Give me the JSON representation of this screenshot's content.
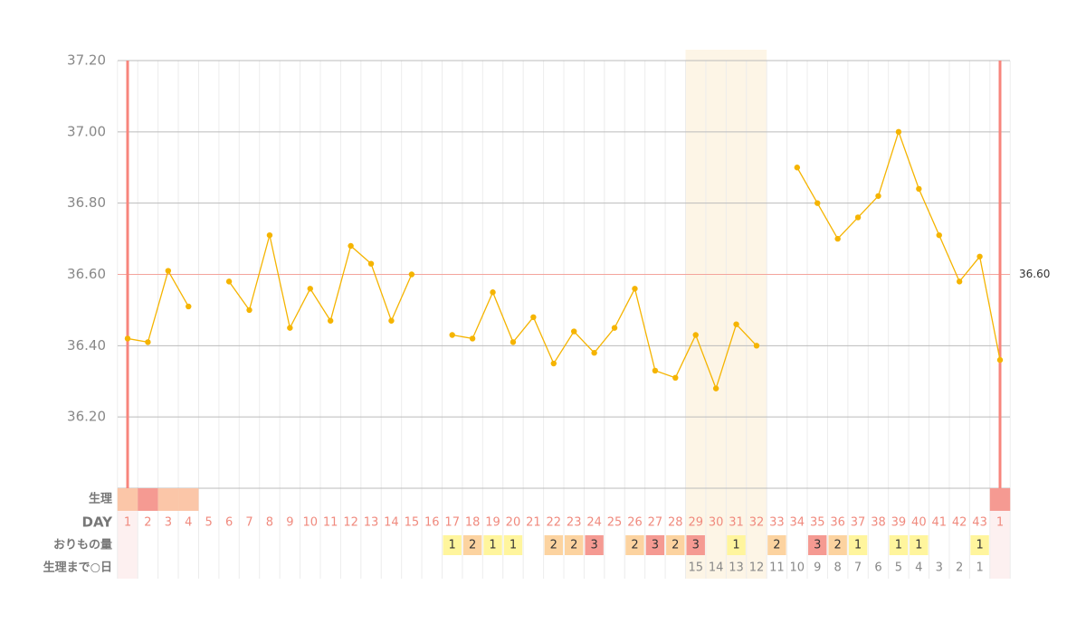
{
  "chart_data": {
    "type": "line",
    "categories": [
      "1",
      "2",
      "3",
      "4",
      "5",
      "6",
      "7",
      "8",
      "9",
      "10",
      "11",
      "12",
      "13",
      "14",
      "15",
      "16",
      "17",
      "18",
      "19",
      "20",
      "21",
      "22",
      "23",
      "24",
      "25",
      "26",
      "27",
      "28",
      "29",
      "30",
      "31",
      "32",
      "33",
      "34",
      "35",
      "36",
      "37",
      "38",
      "39",
      "40",
      "41",
      "42",
      "43",
      "1"
    ],
    "values": [
      36.42,
      36.41,
      36.61,
      36.51,
      null,
      36.58,
      36.5,
      36.71,
      36.45,
      36.56,
      36.47,
      36.68,
      36.63,
      36.47,
      36.6,
      null,
      36.43,
      36.42,
      36.55,
      36.41,
      36.48,
      36.35,
      36.44,
      36.38,
      36.45,
      36.56,
      36.33,
      36.31,
      36.43,
      36.28,
      36.46,
      36.4,
      null,
      36.9,
      36.8,
      36.7,
      36.76,
      36.82,
      37.0,
      36.84,
      36.71,
      36.58,
      36.65,
      36.36
    ],
    "color": "#f5b400",
    "ylim": [
      36.0,
      37.2
    ],
    "yticks": [
      {
        "value": 36.2,
        "label": "36.20"
      },
      {
        "value": 36.4,
        "label": "36.40"
      },
      {
        "value": 36.6,
        "label": "36.60"
      },
      {
        "value": 36.8,
        "label": "36.80"
      },
      {
        "value": 37.0,
        "label": "37.00"
      },
      {
        "value": 37.2,
        "label": "37.20"
      }
    ],
    "grid": true,
    "reference_line": {
      "value": 36.6,
      "label": "36.60",
      "color": "#f4a49c"
    },
    "rows": {
      "period": {
        "label": "生理",
        "levels": [
          1,
          2,
          1,
          1,
          null,
          null,
          null,
          null,
          null,
          null,
          null,
          null,
          null,
          null,
          null,
          null,
          null,
          null,
          null,
          null,
          null,
          null,
          null,
          null,
          null,
          null,
          null,
          null,
          null,
          null,
          null,
          null,
          null,
          null,
          null,
          null,
          null,
          null,
          null,
          null,
          null,
          null,
          null,
          2
        ],
        "colors": [
          "#fbc6a8",
          "#f59a92"
        ]
      },
      "day": {
        "label": "DAY"
      },
      "discharge": {
        "label": "おりもの量",
        "values": [
          null,
          null,
          null,
          null,
          null,
          null,
          null,
          null,
          null,
          null,
          null,
          null,
          null,
          null,
          null,
          null,
          1,
          2,
          1,
          1,
          null,
          2,
          2,
          3,
          null,
          2,
          3,
          2,
          3,
          null,
          1,
          null,
          2,
          null,
          3,
          2,
          1,
          null,
          1,
          1,
          null,
          null,
          1,
          null
        ],
        "colors": [
          "#fff59d",
          "#fcd3a0",
          "#f59a92"
        ]
      },
      "countdown": {
        "label": "生理まで○日",
        "values": [
          null,
          null,
          null,
          null,
          null,
          null,
          null,
          null,
          null,
          null,
          null,
          null,
          null,
          null,
          null,
          null,
          null,
          null,
          null,
          null,
          null,
          null,
          null,
          null,
          null,
          null,
          null,
          null,
          15,
          14,
          13,
          12,
          11,
          10,
          9,
          8,
          7,
          6,
          5,
          4,
          3,
          2,
          1,
          null
        ]
      }
    }
  }
}
